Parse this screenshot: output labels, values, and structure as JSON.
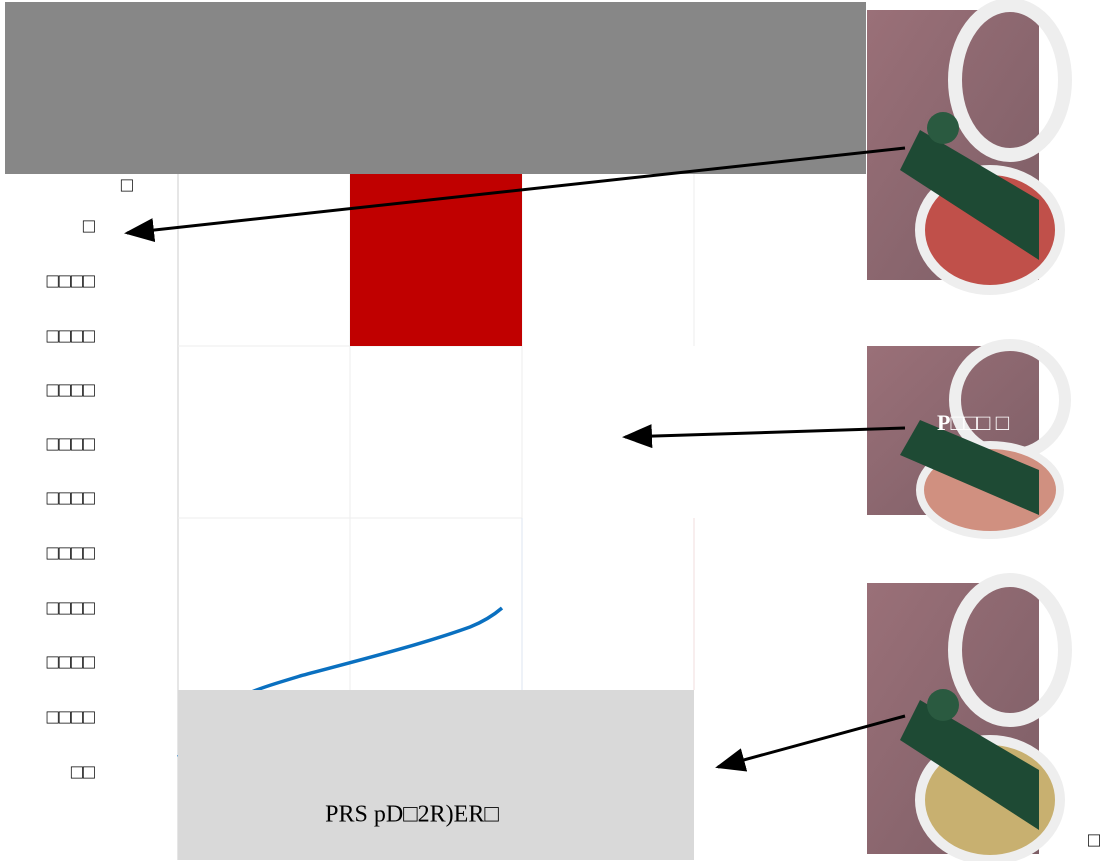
{
  "axis_labels": [
    "□",
    "□",
    "□□□□",
    "□□□□",
    "□□□□",
    "□□□□",
    "□□□□",
    "□□□□",
    "□□□□",
    "□□□□",
    "□□□□",
    "□□"
  ],
  "caption": "PRS pD□2R)ER□",
  "photo_label": "P□□□   □",
  "corner_mark": "□"
}
